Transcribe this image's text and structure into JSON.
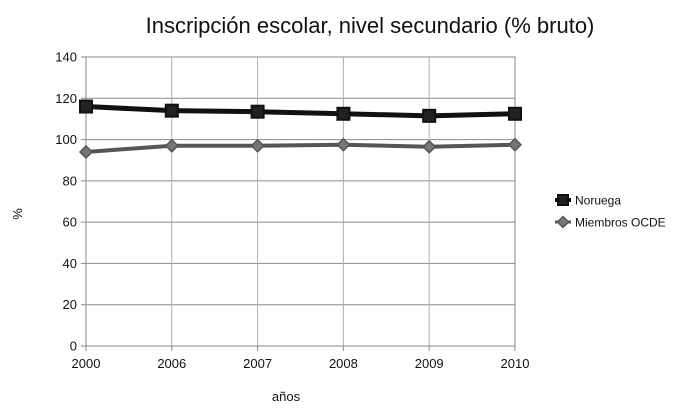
{
  "chart_data": {
    "type": "line",
    "title": "Inscripción escolar, nivel secundario (% bruto)",
    "xlabel": "años",
    "ylabel": "%",
    "categories": [
      "2000",
      "2006",
      "2007",
      "2008",
      "2009",
      "2010"
    ],
    "ylim": [
      0,
      140
    ],
    "yticks": [
      0,
      20,
      40,
      60,
      80,
      100,
      120,
      140
    ],
    "grid": true,
    "legend_position": "right",
    "series": [
      {
        "name": "Noruega",
        "marker": "square",
        "color": "#111111",
        "values": [
          116,
          114,
          113.5,
          112.5,
          111.5,
          112.5
        ]
      },
      {
        "name": "Miembros OCDE",
        "marker": "diamond",
        "color": "#555555",
        "values": [
          94,
          97,
          97,
          97.5,
          96.5,
          97.5
        ]
      }
    ]
  }
}
